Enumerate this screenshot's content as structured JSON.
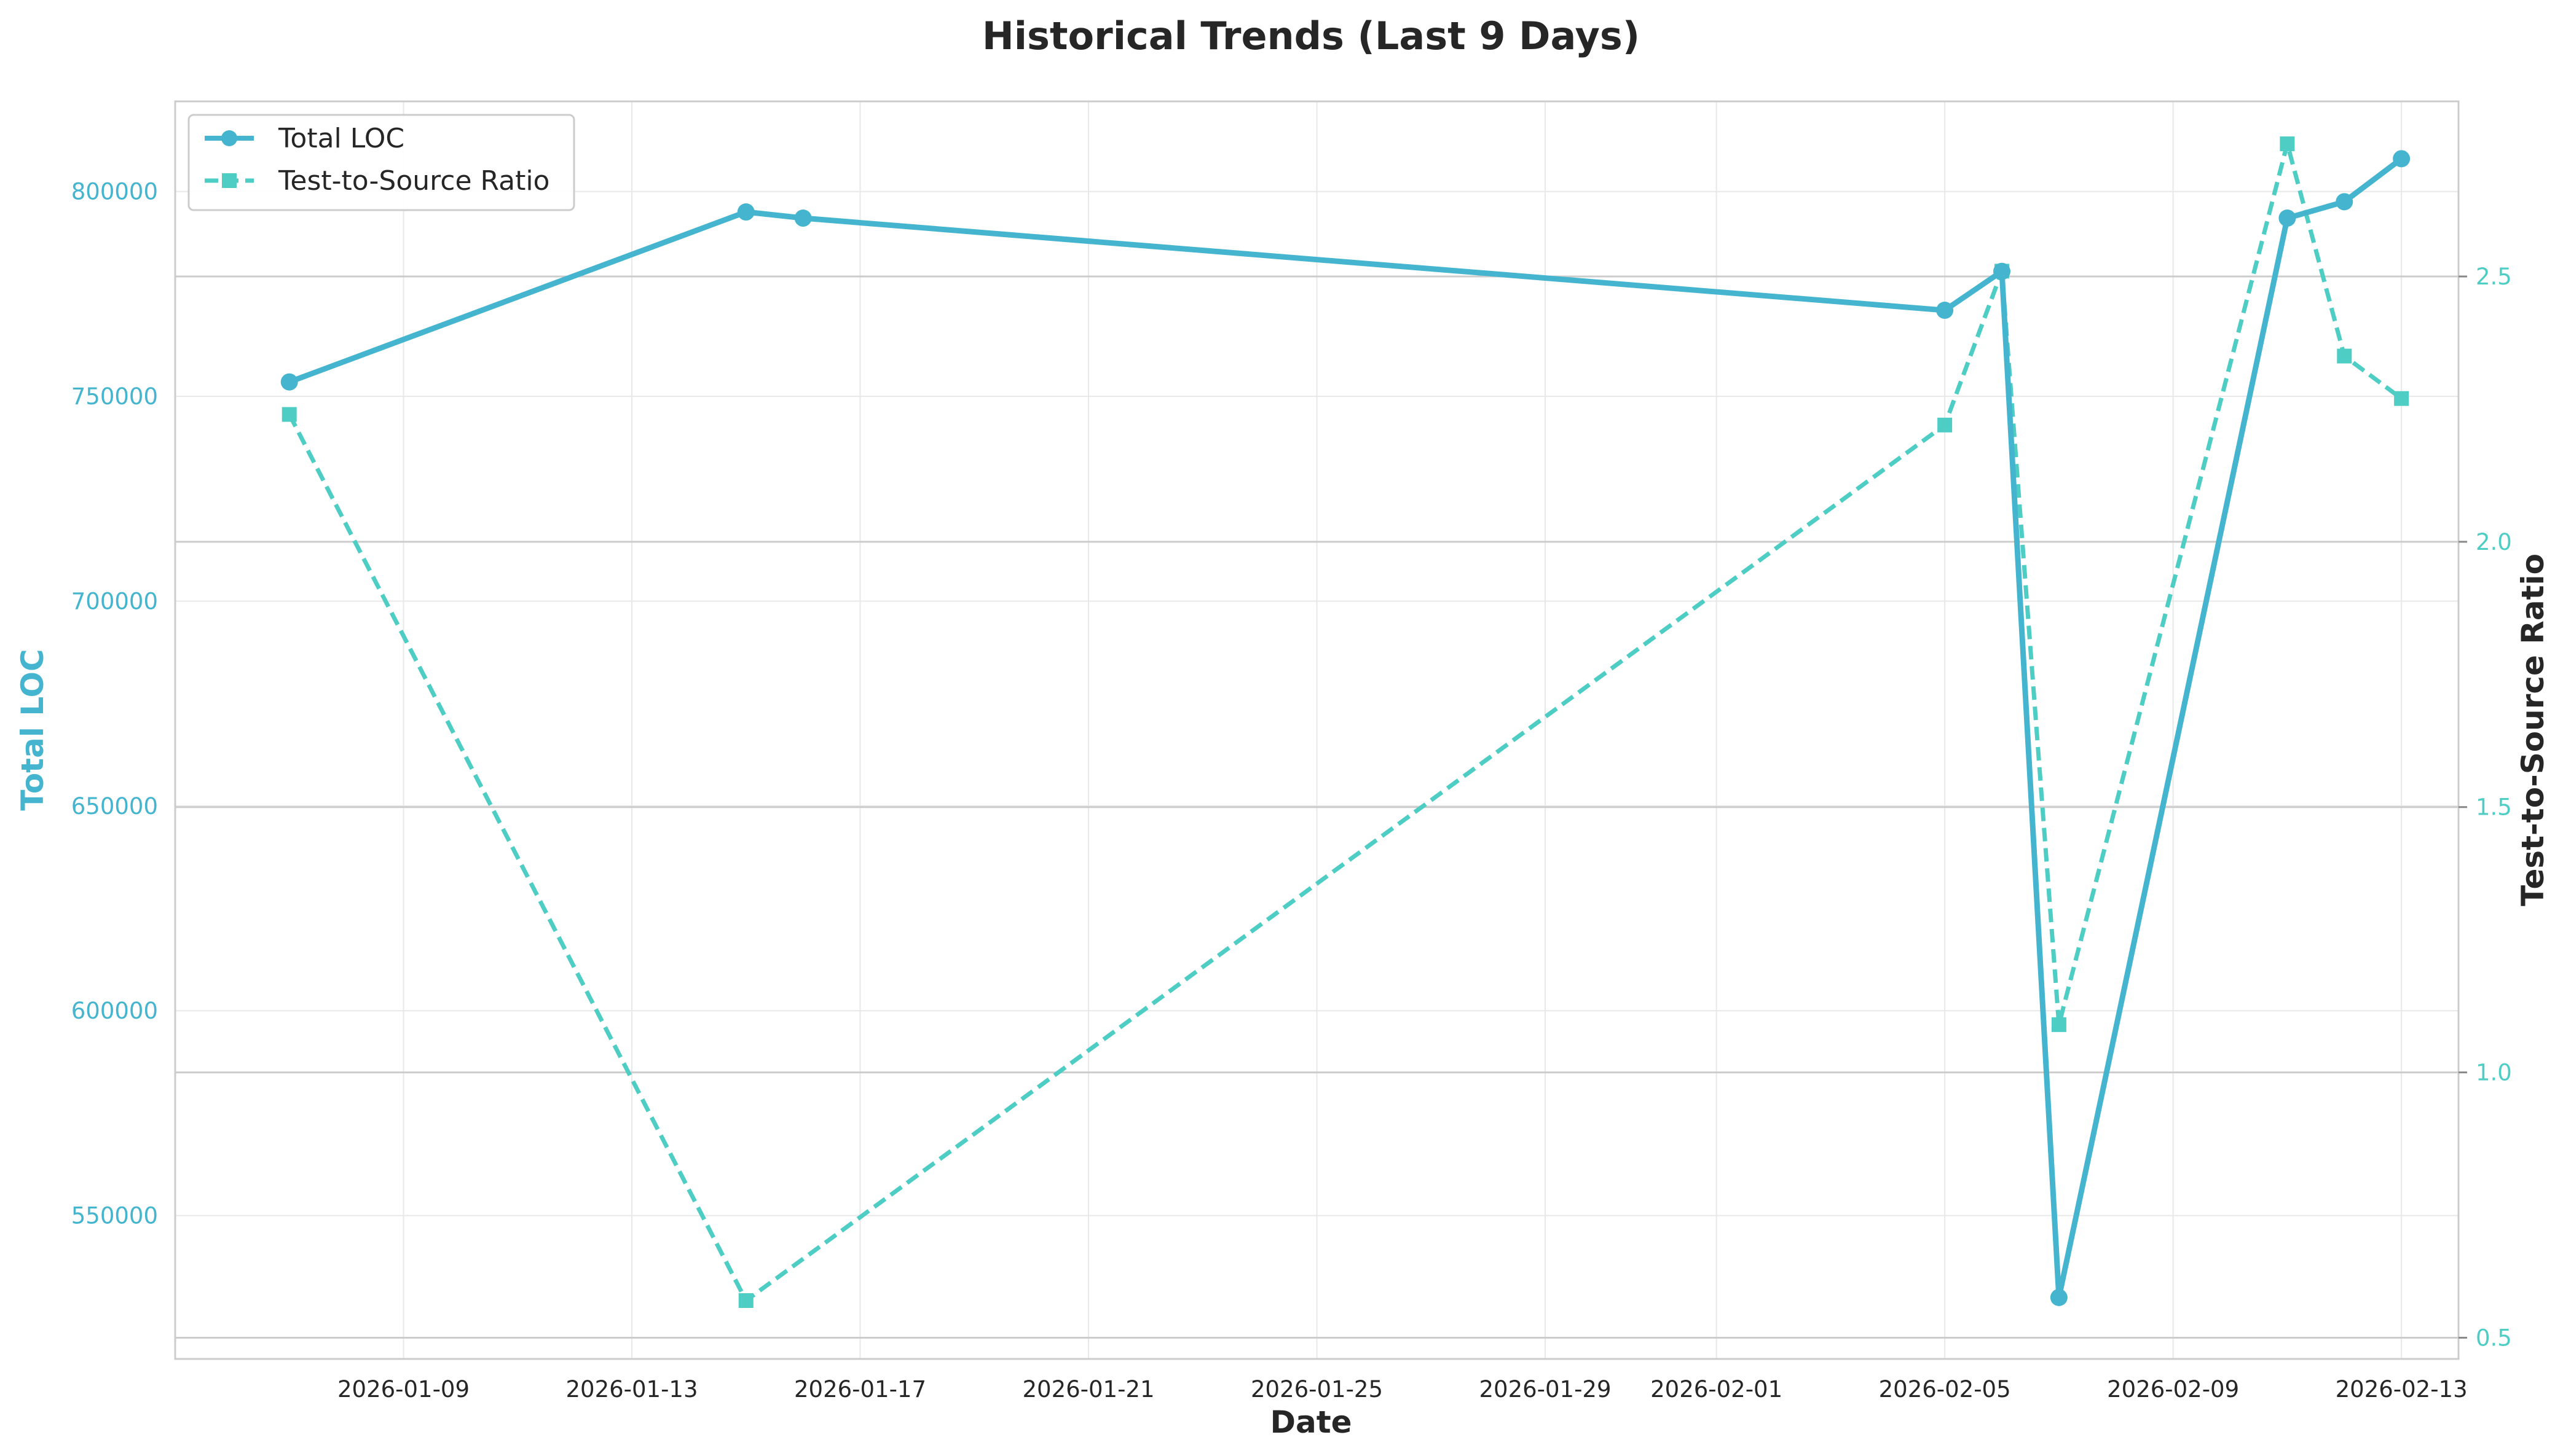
{
  "chart_data": {
    "type": "line",
    "title": "Historical Trends (Last 9 Days)",
    "xlabel": "Date",
    "ylabel_left": "Total LOC",
    "ylabel_right": "Test-to-Source Ratio",
    "x_ticks": [
      "2026-01-09",
      "2026-01-13",
      "2026-01-17",
      "2026-01-21",
      "2026-01-25",
      "2026-01-29",
      "2026-02-01",
      "2026-02-05",
      "2026-02-09",
      "2026-02-13"
    ],
    "y_left_ticks": [
      "550000",
      "600000",
      "650000",
      "700000",
      "750000",
      "800000"
    ],
    "y_right_ticks": [
      "0.5",
      "1.0",
      "1.5",
      "2.0",
      "2.5"
    ],
    "ylim_left": [
      515000,
      822000
    ],
    "ylim_right": [
      0.46,
      2.83
    ],
    "grid": true,
    "legend_position": "top-left",
    "colors": {
      "loc": "#45b5cf",
      "ratio": "#4ecdc4",
      "grid": "#e8e8e8",
      "right_grid": "#cccccc",
      "spine": "#cccccc"
    },
    "series": [
      {
        "name": "Total LOC",
        "axis": "left",
        "x": [
          "2026-01-07",
          "2026-01-15",
          "2026-01-16",
          "2026-02-05",
          "2026-02-06",
          "2026-02-07",
          "2026-02-11",
          "2026-02-12",
          "2026-02-13"
        ],
        "values": [
          753500,
          795000,
          793500,
          771000,
          780500,
          530000,
          793500,
          797500,
          808000
        ]
      },
      {
        "name": "Test-to-Source Ratio",
        "axis": "right",
        "x": [
          "2026-01-07",
          "2026-01-15",
          "2026-02-05",
          "2026-02-06",
          "2026-02-07",
          "2026-02-11",
          "2026-02-12",
          "2026-02-13"
        ],
        "values": [
          2.24,
          0.57,
          2.22,
          2.51,
          1.09,
          2.75,
          2.35,
          2.27
        ]
      }
    ]
  }
}
